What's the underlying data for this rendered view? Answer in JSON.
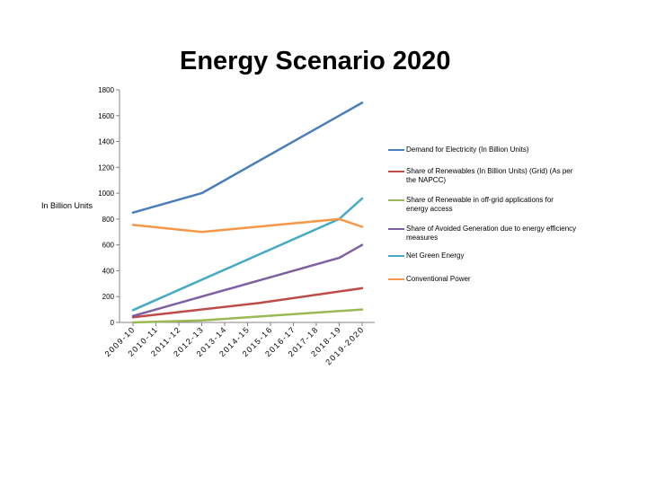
{
  "chart_data": {
    "type": "line",
    "title": "Energy Scenario 2020",
    "ylabel": "In Billion Units",
    "xlabel": "",
    "ylim": [
      0,
      1800
    ],
    "yticks": [
      0,
      200,
      400,
      600,
      800,
      1000,
      1200,
      1400,
      1600,
      1800
    ],
    "categories": [
      "2009-10",
      "2010-11",
      "2011-12",
      "2012-13",
      "2013-14",
      "2014-15",
      "2015-16",
      "2016-17",
      "2017-18",
      "2018-19",
      "2019-2020"
    ],
    "x_points": [
      0,
      3,
      5.5,
      10
    ],
    "legend_position": "right",
    "series": [
      {
        "name": "Demand for Electricity (In Billion Units)",
        "color": "#4A7EBB",
        "x": [
          0,
          3,
          10
        ],
        "values": [
          850,
          1000,
          1700
        ]
      },
      {
        "name": "Share of Renewables (In Billion Units) (Grid) (As per the NAPCC)",
        "color": "#BE4B48",
        "x": [
          0,
          5.5,
          10
        ],
        "values": [
          40,
          150,
          265
        ]
      },
      {
        "name": "Share of Renewable in off-grid applications for energy access",
        "color": "#98B954",
        "x": [
          0,
          3,
          10
        ],
        "values": [
          0,
          15,
          100
        ]
      },
      {
        "name": "Share of Avoided Generation due to energy efficiency measures",
        "color": "#7D60A0",
        "x": [
          0,
          3,
          9,
          10
        ],
        "values": [
          50,
          200,
          500,
          600
        ]
      },
      {
        "name": "Net Green Energy",
        "color": "#46AAC5",
        "x": [
          0,
          9,
          10
        ],
        "values": [
          95,
          800,
          960
        ]
      },
      {
        "name": "Conventional Power",
        "color": "#F79646",
        "x": [
          0,
          3,
          9,
          10
        ],
        "values": [
          755,
          700,
          800,
          740
        ]
      }
    ]
  }
}
